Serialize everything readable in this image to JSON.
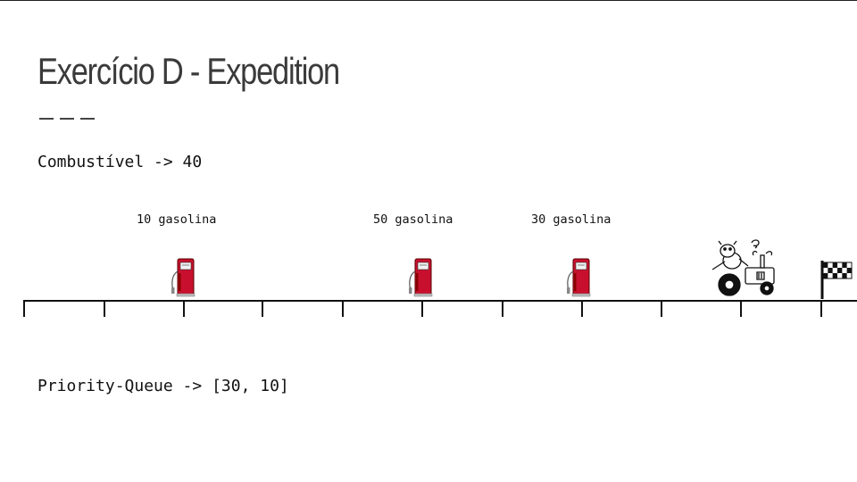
{
  "slide": {
    "title": "Exercício D - Expedition",
    "fuel_text": "Combustível -> 40",
    "priority_queue_text": "Priority-Queue -> [30, 10]"
  },
  "stations": [
    {
      "label": "10 gasolina",
      "icon": "gas-pump-icon"
    },
    {
      "label": "50 gasolina",
      "icon": "gas-pump-icon"
    },
    {
      "label": "30 gasolina",
      "icon": "gas-pump-icon"
    }
  ],
  "tractor": {
    "icon": "cow-tractor-icon"
  },
  "finish": {
    "icon": "checkered-flag-icon"
  },
  "colors": {
    "pump_red": "#c8102e",
    "text": "#111111",
    "title": "#3a3a3a"
  }
}
